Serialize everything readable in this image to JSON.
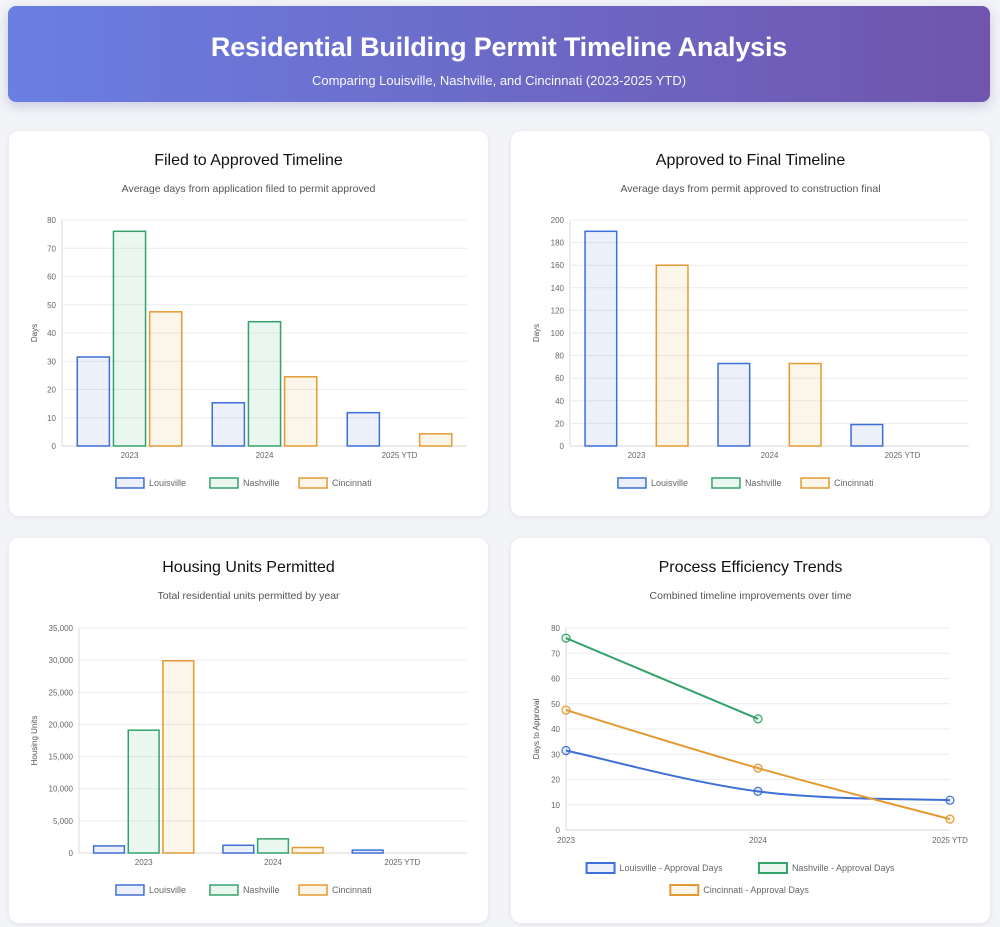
{
  "header": {
    "title": "Residential Building Permit Timeline Analysis",
    "subtitle": "Comparing Louisville, Nashville, and Cincinnati (2023-2025 YTD)"
  },
  "colors": {
    "Louisville": "#3e6fd6",
    "Nashville": "#35a26b",
    "Cincinnati": "#e39a33"
  },
  "charts": [
    {
      "title": "Filed to Approved Timeline",
      "subtitle": "Average days from application filed to permit approved"
    },
    {
      "title": "Approved to Final Timeline",
      "subtitle": "Average days from permit approved to construction final"
    },
    {
      "title": "Housing Units Permitted",
      "subtitle": "Total residential units permitted by year"
    },
    {
      "title": "Process Efficiency Trends",
      "subtitle": "Combined timeline improvements over time"
    }
  ],
  "chart_data": [
    {
      "type": "bar",
      "categories": [
        "2023",
        "2024",
        "2025 YTD"
      ],
      "ylabel": "Days",
      "ylim": [
        0,
        80
      ],
      "ytick_step": 10,
      "legend_placement": "bottom",
      "grid": true,
      "series": [
        {
          "name": "Louisville",
          "values": [
            31.5,
            15.3,
            11.8
          ]
        },
        {
          "name": "Nashville",
          "values": [
            76,
            44,
            null
          ]
        },
        {
          "name": "Cincinnati",
          "values": [
            47.5,
            24.5,
            4.3
          ]
        }
      ]
    },
    {
      "type": "bar",
      "categories": [
        "2023",
        "2024",
        "2025 YTD"
      ],
      "ylabel": "Days",
      "ylim": [
        0,
        200
      ],
      "ytick_step": 20,
      "legend_placement": "bottom",
      "grid": true,
      "series": [
        {
          "name": "Louisville",
          "values": [
            190,
            73,
            19
          ]
        },
        {
          "name": "Nashville",
          "values": [
            null,
            null,
            null
          ]
        },
        {
          "name": "Cincinnati",
          "values": [
            160,
            73,
            null
          ]
        }
      ]
    },
    {
      "type": "bar",
      "categories": [
        "2023",
        "2024",
        "2025 YTD"
      ],
      "ylabel": "Housing Units",
      "ylim": [
        0,
        35000
      ],
      "ytick_step": 5000,
      "legend_placement": "bottom",
      "grid": true,
      "series": [
        {
          "name": "Louisville",
          "values": [
            1100,
            1200,
            450
          ]
        },
        {
          "name": "Nashville",
          "values": [
            19100,
            2200,
            null
          ]
        },
        {
          "name": "Cincinnati",
          "values": [
            29900,
            850,
            null
          ]
        }
      ]
    },
    {
      "type": "line",
      "categories": [
        "2023",
        "2024",
        "2025 YTD"
      ],
      "ylabel": "Days to Approval",
      "ylim": [
        0,
        80
      ],
      "ytick_step": 10,
      "legend_placement": "bottom",
      "grid": true,
      "series": [
        {
          "name": "Louisville - Approval Days",
          "color_key": "Louisville",
          "values": [
            31.5,
            15.3,
            11.8
          ]
        },
        {
          "name": "Nashville - Approval Days",
          "color_key": "Nashville",
          "values": [
            76,
            44,
            null
          ]
        },
        {
          "name": "Cincinnati - Approval Days",
          "color_key": "Cincinnati",
          "values": [
            47.5,
            24.5,
            4.3
          ]
        }
      ]
    }
  ]
}
